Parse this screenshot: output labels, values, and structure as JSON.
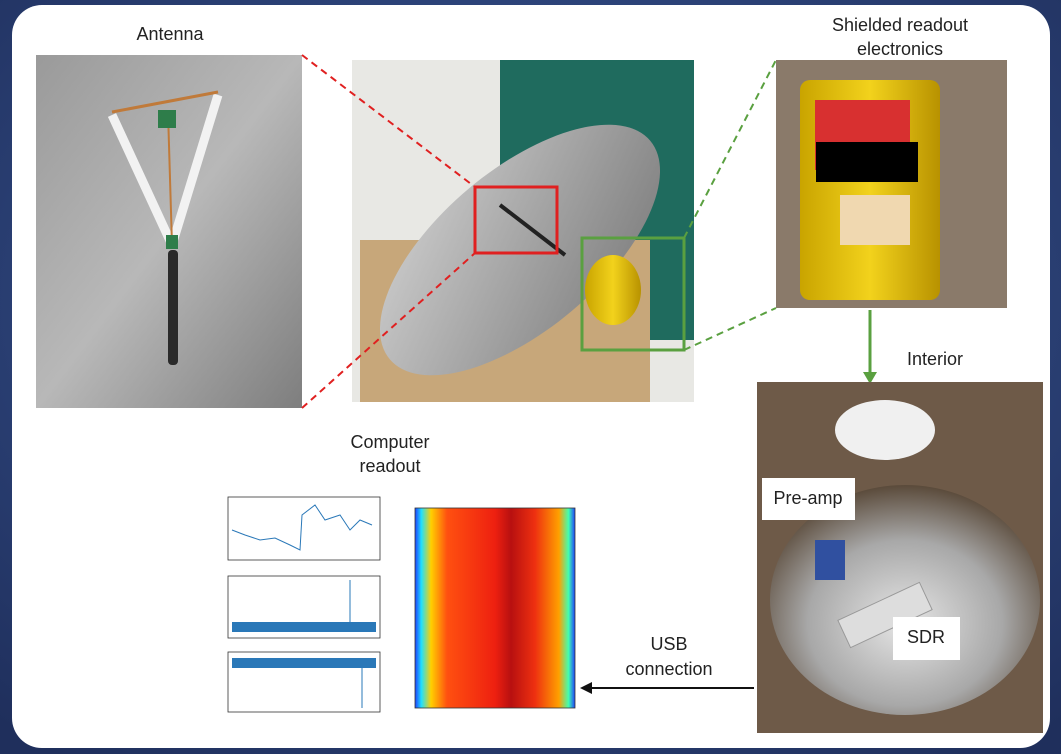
{
  "labels": {
    "antenna": "Antenna",
    "shielded": [
      "Shielded readout",
      "electronics"
    ],
    "interior": "Interior",
    "computer": [
      "Computer",
      "readout"
    ],
    "preamp": "Pre-amp",
    "sdr": "SDR",
    "usb": [
      "USB",
      "connection"
    ]
  }
}
